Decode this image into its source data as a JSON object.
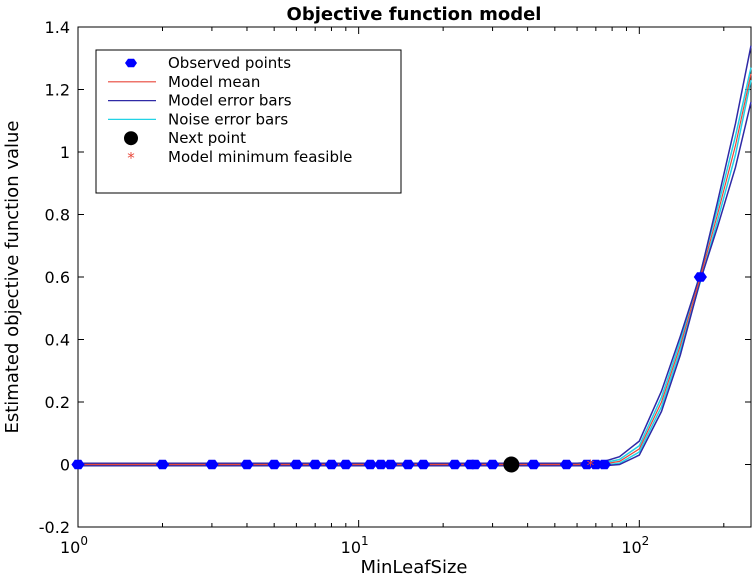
{
  "chart_data": {
    "type": "line",
    "title": "Objective function model",
    "xlabel": "MinLeafSize",
    "ylabel": "Estimated objective function value",
    "x_scale": "log",
    "xlim": [
      1,
      250
    ],
    "ylim": [
      -0.2,
      1.4
    ],
    "x_ticks": [
      {
        "value": 1,
        "base": "10",
        "exp": "0"
      },
      {
        "value": 10,
        "base": "10",
        "exp": "1"
      },
      {
        "value": 100,
        "base": "10",
        "exp": "2"
      }
    ],
    "y_ticks": [
      {
        "value": -0.2,
        "label": "-0.2"
      },
      {
        "value": 0,
        "label": "0"
      },
      {
        "value": 0.2,
        "label": "0.2"
      },
      {
        "value": 0.4,
        "label": "0.4"
      },
      {
        "value": 0.6,
        "label": "0.6"
      },
      {
        "value": 0.8,
        "label": "0.8"
      },
      {
        "value": 1,
        "label": "1"
      },
      {
        "value": 1.2,
        "label": "1.2"
      },
      {
        "value": 1.4,
        "label": "1.4"
      }
    ],
    "grid": false,
    "legend_position": "top-left",
    "legend": [
      {
        "label": "Observed points",
        "kind": "marker-diamond",
        "color": "#0000ff"
      },
      {
        "label": "Model mean",
        "kind": "line",
        "color": "#e8473a"
      },
      {
        "label": "Model error bars",
        "kind": "line",
        "color": "#2f2aa6"
      },
      {
        "label": "Noise error bars",
        "kind": "line",
        "color": "#22d3e6"
      },
      {
        "label": "Next point",
        "kind": "marker-circle",
        "color": "#000000"
      },
      {
        "label": "Model minimum feasible",
        "kind": "marker-star",
        "color": "#e8473a"
      }
    ],
    "series": [
      {
        "name": "Observed points",
        "type": "scatter",
        "color": "#0000ff",
        "x": [
          1,
          2,
          3,
          4,
          5,
          6,
          7,
          8,
          9,
          11,
          12,
          13,
          15,
          17,
          22,
          25,
          26,
          30,
          35,
          42,
          55,
          65,
          70,
          75,
          165
        ],
        "y": [
          0,
          0,
          0,
          0,
          0,
          0,
          0,
          0,
          0,
          0,
          0,
          0,
          0,
          0,
          0,
          0,
          0,
          0,
          0,
          0,
          0,
          0,
          0,
          0,
          0.6
        ]
      },
      {
        "name": "Model mean",
        "type": "line",
        "color": "#e8473a",
        "x": [
          1,
          10,
          60,
          75,
          85,
          100,
          120,
          140,
          165,
          190,
          220,
          250
        ],
        "y": [
          0,
          0,
          0,
          0.002,
          0.01,
          0.05,
          0.2,
          0.38,
          0.6,
          0.8,
          1.02,
          1.25
        ]
      },
      {
        "name": "Model error bars (upper)",
        "type": "line",
        "color": "#2f2aa6",
        "x": [
          1,
          10,
          60,
          75,
          85,
          100,
          120,
          140,
          165,
          190,
          220,
          250
        ],
        "y": [
          0.004,
          0.004,
          0.004,
          0.01,
          0.025,
          0.075,
          0.235,
          0.41,
          0.61,
          0.84,
          1.09,
          1.34
        ]
      },
      {
        "name": "Model error bars (lower)",
        "type": "line",
        "color": "#2f2aa6",
        "x": [
          1,
          10,
          60,
          75,
          85,
          100,
          120,
          140,
          165,
          190,
          220,
          250
        ],
        "y": [
          -0.004,
          -0.004,
          -0.004,
          -0.004,
          0.0,
          0.03,
          0.17,
          0.35,
          0.59,
          0.76,
          0.95,
          1.16
        ]
      },
      {
        "name": "Noise error bars (upper)",
        "type": "line",
        "color": "#22d3e6",
        "x": [
          1,
          10,
          60,
          75,
          85,
          100,
          120,
          140,
          165,
          190,
          220,
          250
        ],
        "y": [
          0.002,
          0.002,
          0.002,
          0.006,
          0.016,
          0.06,
          0.215,
          0.395,
          0.615,
          0.82,
          1.05,
          1.27
        ]
      },
      {
        "name": "Noise error bars (lower)",
        "type": "line",
        "color": "#22d3e6",
        "x": [
          1,
          10,
          60,
          75,
          85,
          100,
          120,
          140,
          165,
          190,
          220,
          250
        ],
        "y": [
          -0.002,
          -0.002,
          -0.002,
          -0.002,
          0.004,
          0.04,
          0.185,
          0.365,
          0.585,
          0.78,
          0.99,
          1.23
        ]
      },
      {
        "name": "Next point",
        "type": "scatter",
        "color": "#000000",
        "x": [
          35
        ],
        "y": [
          0
        ]
      },
      {
        "name": "Model minimum feasible",
        "type": "scatter",
        "color": "#e8473a",
        "x": [
          67
        ],
        "y": [
          0
        ]
      }
    ]
  }
}
